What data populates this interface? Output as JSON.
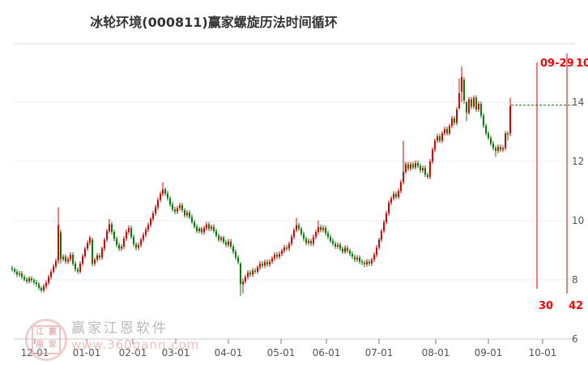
{
  "title": "冰轮环境(000811)赢家螺旋历法时间循环",
  "watermark": {
    "logo_chars": [
      "江",
      "赢",
      "恩",
      "家"
    ],
    "name": "赢家江恩软件",
    "url": "www.360gann.com"
  },
  "colors": {
    "up_candle": "#e00000",
    "down_candle": "#008200",
    "cycle_line": "#f87b7b",
    "cycle_label": "#ff0000",
    "price_line": "#1a7a1a",
    "grid": "#ececec",
    "plot_border": "#dedede",
    "axis": "#c8c8c8",
    "tick": "#777777",
    "label": "#555555",
    "title": "#333333"
  },
  "chart_data": {
    "type": "candlestick",
    "title": "冰轮环境(000811)赢家螺旋历法时间循环",
    "xlabel": "",
    "ylabel": "",
    "x_ticks": [
      "12-01",
      "01-01",
      "02-01",
      "03-01",
      "04-01",
      "05-01",
      "06-01",
      "07-01",
      "08-01",
      "09-01",
      "10-01"
    ],
    "y_ticks": [
      14,
      12,
      10,
      8,
      6
    ],
    "ylim": [
      6,
      16
    ],
    "grid": true,
    "legend": false,
    "last_price": 13.9,
    "cycle_lines": [
      {
        "label_top": "09-29",
        "label_bottom": "30"
      },
      {
        "label_top": "10-",
        "label_bottom": "42"
      }
    ],
    "candles_format": [
      "open",
      "high",
      "low",
      "close"
    ],
    "candles": [
      [
        8.4,
        8.48,
        8.27,
        8.35
      ],
      [
        8.35,
        8.43,
        8.2,
        8.28
      ],
      [
        8.28,
        8.36,
        8.1,
        8.18
      ],
      [
        8.18,
        8.3,
        8.1,
        8.22
      ],
      [
        8.22,
        8.3,
        8.02,
        8.1
      ],
      [
        8.1,
        8.18,
        7.94,
        8.02
      ],
      [
        8.02,
        8.1,
        7.87,
        7.95
      ],
      [
        7.95,
        8.13,
        7.87,
        8.05
      ],
      [
        8.05,
        8.13,
        7.9,
        7.98
      ],
      [
        7.98,
        8.06,
        7.84,
        7.92
      ],
      [
        7.92,
        8.0,
        7.77,
        7.85
      ],
      [
        7.85,
        7.93,
        7.64,
        7.72
      ],
      [
        7.72,
        7.8,
        7.57,
        7.65
      ],
      [
        7.65,
        7.86,
        7.57,
        7.78
      ],
      [
        7.78,
        7.98,
        7.7,
        7.9
      ],
      [
        7.9,
        8.18,
        7.82,
        8.1
      ],
      [
        8.1,
        8.36,
        8.02,
        8.28
      ],
      [
        8.28,
        8.53,
        8.2,
        8.45
      ],
      [
        8.45,
        8.73,
        8.37,
        8.65
      ],
      [
        8.65,
        10.45,
        8.55,
        9.85
      ],
      [
        9.6,
        9.7,
        8.55,
        8.7
      ],
      [
        8.7,
        8.86,
        8.62,
        8.78
      ],
      [
        8.78,
        8.86,
        8.54,
        8.62
      ],
      [
        8.62,
        8.78,
        8.54,
        8.7
      ],
      [
        8.7,
        8.93,
        8.62,
        8.85
      ],
      [
        8.85,
        8.93,
        8.47,
        8.55
      ],
      [
        8.55,
        8.63,
        8.27,
        8.35
      ],
      [
        8.35,
        8.43,
        8.2,
        8.28
      ],
      [
        8.28,
        8.63,
        8.2,
        8.55
      ],
      [
        8.55,
        8.88,
        8.47,
        8.8
      ],
      [
        8.8,
        9.13,
        8.72,
        9.05
      ],
      [
        9.05,
        9.33,
        8.97,
        9.25
      ],
      [
        9.25,
        9.5,
        9.17,
        9.42
      ],
      [
        9.35,
        9.42,
        8.45,
        8.55
      ],
      [
        8.55,
        8.76,
        8.47,
        8.68
      ],
      [
        8.68,
        8.9,
        8.6,
        8.82
      ],
      [
        8.82,
        8.9,
        8.67,
        8.75
      ],
      [
        8.75,
        9.13,
        8.67,
        9.05
      ],
      [
        9.05,
        9.43,
        8.97,
        9.35
      ],
      [
        9.35,
        9.73,
        9.27,
        9.65
      ],
      [
        9.65,
        10.05,
        9.57,
        9.88
      ],
      [
        9.88,
        9.96,
        9.54,
        9.62
      ],
      [
        9.62,
        9.7,
        9.3,
        9.38
      ],
      [
        9.38,
        9.46,
        9.1,
        9.18
      ],
      [
        9.18,
        9.26,
        8.97,
        9.05
      ],
      [
        9.05,
        9.2,
        8.97,
        9.12
      ],
      [
        9.12,
        9.48,
        9.04,
        9.4
      ],
      [
        9.4,
        9.7,
        9.32,
        9.62
      ],
      [
        9.62,
        9.83,
        9.54,
        9.75
      ],
      [
        9.75,
        9.83,
        9.37,
        9.45
      ],
      [
        9.45,
        9.53,
        9.12,
        9.2
      ],
      [
        9.2,
        9.28,
        9.0,
        9.08
      ],
      [
        9.08,
        9.26,
        9.0,
        9.18
      ],
      [
        9.18,
        9.43,
        9.1,
        9.35
      ],
      [
        9.35,
        9.6,
        9.27,
        9.52
      ],
      [
        9.52,
        9.78,
        9.44,
        9.7
      ],
      [
        9.7,
        9.93,
        9.62,
        9.85
      ],
      [
        9.85,
        10.13,
        9.77,
        10.05
      ],
      [
        10.05,
        10.33,
        9.97,
        10.25
      ],
      [
        10.25,
        10.53,
        10.17,
        10.45
      ],
      [
        10.45,
        10.78,
        10.37,
        10.7
      ],
      [
        10.7,
        10.98,
        10.62,
        10.9
      ],
      [
        10.9,
        11.3,
        10.82,
        11.05
      ],
      [
        11.05,
        11.13,
        10.84,
        10.92
      ],
      [
        10.92,
        11.0,
        10.67,
        10.75
      ],
      [
        10.75,
        10.83,
        10.47,
        10.55
      ],
      [
        10.55,
        10.63,
        10.3,
        10.38
      ],
      [
        10.38,
        10.46,
        10.22,
        10.3
      ],
      [
        10.3,
        10.5,
        10.22,
        10.42
      ],
      [
        10.42,
        10.6,
        10.34,
        10.52
      ],
      [
        10.52,
        10.6,
        10.27,
        10.35
      ],
      [
        10.35,
        10.43,
        10.1,
        10.18
      ],
      [
        10.18,
        10.36,
        10.1,
        10.28
      ],
      [
        10.28,
        10.36,
        10.04,
        10.12
      ],
      [
        10.12,
        10.2,
        9.87,
        9.95
      ],
      [
        9.95,
        10.03,
        9.72,
        9.8
      ],
      [
        9.8,
        9.88,
        9.57,
        9.65
      ],
      [
        9.65,
        9.8,
        9.57,
        9.72
      ],
      [
        9.72,
        9.8,
        9.52,
        9.6
      ],
      [
        9.6,
        9.83,
        9.52,
        9.75
      ],
      [
        9.75,
        9.96,
        9.67,
        9.88
      ],
      [
        9.88,
        9.96,
        9.64,
        9.72
      ],
      [
        9.72,
        9.88,
        9.64,
        9.8
      ],
      [
        9.8,
        9.88,
        9.57,
        9.65
      ],
      [
        9.65,
        9.73,
        9.42,
        9.5
      ],
      [
        9.5,
        9.58,
        9.27,
        9.35
      ],
      [
        9.35,
        9.5,
        9.27,
        9.42
      ],
      [
        9.42,
        9.5,
        9.2,
        9.28
      ],
      [
        9.28,
        9.36,
        9.1,
        9.18
      ],
      [
        9.18,
        9.38,
        9.1,
        9.3
      ],
      [
        9.3,
        9.38,
        9.04,
        9.12
      ],
      [
        9.12,
        9.2,
        8.87,
        8.95
      ],
      [
        8.95,
        9.03,
        8.67,
        8.75
      ],
      [
        8.75,
        8.83,
        8.52,
        8.6
      ],
      [
        8.55,
        8.6,
        7.45,
        7.85
      ],
      [
        7.85,
        8.05,
        7.55,
        7.95
      ],
      [
        7.95,
        8.18,
        7.87,
        8.1
      ],
      [
        8.1,
        8.33,
        8.02,
        8.25
      ],
      [
        8.25,
        8.33,
        8.1,
        8.18
      ],
      [
        8.18,
        8.4,
        8.1,
        8.32
      ],
      [
        8.32,
        8.4,
        8.2,
        8.28
      ],
      [
        8.28,
        8.5,
        8.2,
        8.42
      ],
      [
        8.42,
        8.63,
        8.34,
        8.55
      ],
      [
        8.55,
        8.63,
        8.4,
        8.48
      ],
      [
        8.48,
        8.68,
        8.4,
        8.6
      ],
      [
        8.6,
        8.68,
        8.44,
        8.52
      ],
      [
        8.52,
        8.7,
        8.44,
        8.62
      ],
      [
        8.62,
        8.8,
        8.54,
        8.72
      ],
      [
        8.72,
        8.93,
        8.64,
        8.85
      ],
      [
        8.85,
        8.93,
        8.7,
        8.78
      ],
      [
        8.78,
        8.96,
        8.7,
        8.88
      ],
      [
        8.88,
        9.06,
        8.8,
        8.98
      ],
      [
        8.98,
        9.18,
        8.9,
        9.1
      ],
      [
        9.1,
        9.18,
        8.97,
        9.05
      ],
      [
        9.05,
        9.3,
        8.97,
        9.22
      ],
      [
        9.22,
        9.53,
        9.14,
        9.45
      ],
      [
        9.45,
        9.76,
        9.37,
        9.68
      ],
      [
        9.68,
        10.1,
        9.6,
        9.85
      ],
      [
        9.85,
        9.93,
        9.64,
        9.72
      ],
      [
        9.72,
        9.8,
        9.47,
        9.55
      ],
      [
        9.55,
        9.63,
        9.3,
        9.38
      ],
      [
        9.38,
        9.46,
        9.17,
        9.25
      ],
      [
        9.25,
        9.4,
        9.17,
        9.32
      ],
      [
        9.32,
        9.4,
        9.14,
        9.22
      ],
      [
        9.22,
        9.53,
        9.14,
        9.45
      ],
      [
        9.45,
        9.7,
        9.37,
        9.62
      ],
      [
        9.62,
        10.0,
        9.54,
        9.78
      ],
      [
        9.78,
        9.86,
        9.6,
        9.68
      ],
      [
        9.68,
        9.83,
        9.6,
        9.75
      ],
      [
        9.75,
        9.83,
        9.5,
        9.58
      ],
      [
        9.58,
        9.66,
        9.37,
        9.45
      ],
      [
        9.45,
        9.53,
        9.24,
        9.32
      ],
      [
        9.32,
        9.4,
        9.14,
        9.22
      ],
      [
        9.22,
        9.3,
        9.04,
        9.12
      ],
      [
        9.12,
        9.26,
        9.04,
        9.18
      ],
      [
        9.18,
        9.26,
        8.97,
        9.05
      ],
      [
        9.05,
        9.13,
        8.87,
        8.95
      ],
      [
        8.95,
        9.16,
        8.87,
        9.08
      ],
      [
        9.08,
        9.16,
        8.9,
        8.98
      ],
      [
        8.98,
        9.06,
        8.8,
        8.88
      ],
      [
        8.88,
        8.96,
        8.7,
        8.78
      ],
      [
        8.78,
        8.86,
        8.6,
        8.68
      ],
      [
        8.68,
        8.83,
        8.6,
        8.75
      ],
      [
        8.75,
        8.83,
        8.54,
        8.62
      ],
      [
        8.62,
        8.7,
        8.5,
        8.58
      ],
      [
        8.58,
        8.66,
        8.42,
        8.52
      ],
      [
        8.52,
        8.7,
        8.44,
        8.62
      ],
      [
        8.62,
        8.7,
        8.47,
        8.55
      ],
      [
        8.55,
        8.76,
        8.47,
        8.68
      ],
      [
        8.68,
        8.93,
        8.6,
        8.85
      ],
      [
        8.85,
        9.18,
        8.77,
        9.1
      ],
      [
        9.1,
        9.43,
        9.02,
        9.35
      ],
      [
        9.35,
        9.73,
        9.27,
        9.65
      ],
      [
        9.65,
        10.03,
        9.57,
        9.95
      ],
      [
        9.95,
        10.33,
        9.87,
        10.25
      ],
      [
        10.25,
        10.68,
        10.17,
        10.6
      ],
      [
        10.6,
        10.83,
        10.52,
        10.75
      ],
      [
        10.75,
        10.98,
        10.67,
        10.9
      ],
      [
        10.9,
        10.98,
        10.72,
        10.8
      ],
      [
        10.8,
        11.08,
        10.72,
        11.0
      ],
      [
        11.0,
        11.38,
        10.92,
        11.3
      ],
      [
        11.3,
        12.7,
        11.22,
        11.65
      ],
      [
        11.65,
        11.98,
        11.57,
        11.9
      ],
      [
        11.9,
        11.98,
        11.67,
        11.75
      ],
      [
        11.75,
        11.98,
        11.67,
        11.9
      ],
      [
        11.9,
        11.98,
        11.72,
        11.8
      ],
      [
        11.8,
        12.03,
        11.72,
        11.95
      ],
      [
        11.95,
        12.03,
        11.77,
        11.85
      ],
      [
        11.85,
        11.93,
        11.62,
        11.7
      ],
      [
        11.7,
        11.86,
        11.62,
        11.78
      ],
      [
        11.78,
        11.86,
        11.47,
        11.55
      ],
      [
        11.55,
        11.63,
        11.4,
        11.48
      ],
      [
        11.48,
        12.08,
        11.4,
        12.0
      ],
      [
        12.0,
        12.48,
        11.92,
        12.4
      ],
      [
        12.4,
        12.78,
        12.32,
        12.7
      ],
      [
        12.7,
        12.93,
        12.62,
        12.85
      ],
      [
        12.85,
        12.93,
        12.62,
        12.7
      ],
      [
        12.7,
        13.03,
        12.62,
        12.95
      ],
      [
        12.95,
        13.18,
        12.87,
        13.1
      ],
      [
        13.1,
        13.18,
        12.87,
        12.95
      ],
      [
        12.95,
        13.28,
        12.87,
        13.2
      ],
      [
        13.2,
        13.53,
        13.12,
        13.45
      ],
      [
        13.45,
        13.53,
        13.22,
        13.3
      ],
      [
        13.3,
        13.83,
        13.22,
        13.75
      ],
      [
        13.8,
        14.8,
        13.75,
        14.3
      ],
      [
        14.35,
        15.2,
        14.0,
        14.85
      ],
      [
        14.75,
        14.85,
        13.95,
        14.05
      ],
      [
        14.0,
        14.05,
        13.35,
        13.65
      ],
      [
        13.65,
        14.18,
        13.57,
        14.1
      ],
      [
        14.1,
        14.18,
        13.77,
        13.85
      ],
      [
        13.85,
        14.23,
        13.77,
        14.15
      ],
      [
        14.15,
        14.23,
        13.67,
        13.75
      ],
      [
        13.75,
        14.03,
        13.67,
        13.95
      ],
      [
        13.95,
        14.03,
        13.47,
        13.55
      ],
      [
        13.55,
        13.63,
        13.12,
        13.2
      ],
      [
        13.2,
        13.28,
        12.87,
        12.95
      ],
      [
        12.95,
        13.03,
        12.72,
        12.8
      ],
      [
        12.8,
        12.88,
        12.52,
        12.6
      ],
      [
        12.6,
        12.68,
        12.37,
        12.45
      ],
      [
        12.45,
        12.53,
        12.15,
        12.35
      ],
      [
        12.35,
        12.58,
        12.27,
        12.5
      ],
      [
        12.5,
        12.58,
        12.32,
        12.4
      ],
      [
        12.4,
        12.53,
        12.32,
        12.45
      ],
      [
        12.45,
        13.03,
        12.37,
        12.95
      ],
      [
        12.95,
        13.03,
        12.7,
        12.9
      ],
      [
        12.95,
        14.15,
        12.85,
        13.88
      ]
    ]
  }
}
